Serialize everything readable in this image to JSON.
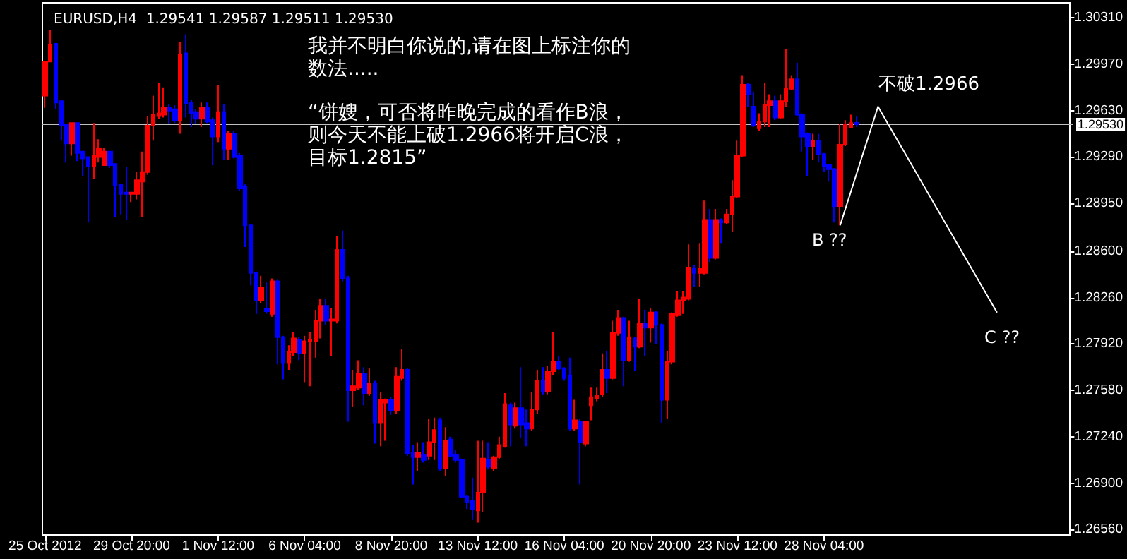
{
  "chart_data": {
    "type": "candlestick",
    "title": "EURUSD,H4  1.29541 1.29587 1.29511 1.29530",
    "annotations": [
      "我并不明白你说的,请在图上标注你的",
      "数法.....",
      "“饼嫂，可否将昨晚完成的看作B浪，",
      "则今天不能上破1.2966将开启C浪，",
      "目标1.2815”",
      "不破1.2966",
      "B ??",
      "C ??"
    ],
    "categories": [
      "25 Oct 2012",
      null,
      null,
      null,
      null,
      null,
      null,
      null,
      null,
      null,
      null,
      null,
      null,
      null,
      null,
      null,
      "29 Oct 20:00",
      null,
      null,
      null,
      null,
      null,
      null,
      null,
      null,
      null,
      null,
      null,
      null,
      null,
      null,
      null,
      "1 Nov 12:00",
      null,
      null,
      null,
      null,
      null,
      null,
      null,
      null,
      null,
      null,
      null,
      null,
      null,
      null,
      null,
      "6 Nov 04:00",
      null,
      null,
      null,
      null,
      null,
      null,
      null,
      null,
      null,
      null,
      null,
      null,
      null,
      null,
      null,
      "8 Nov 20:00",
      null,
      null,
      null,
      null,
      null,
      null,
      null,
      null,
      null,
      null,
      null,
      null,
      null,
      null,
      null,
      "13 Nov 12:00",
      null,
      null,
      null,
      null,
      null,
      null,
      null,
      null,
      null,
      null,
      null,
      null,
      null,
      null,
      null,
      "16 Nov 04:00",
      null,
      null,
      null,
      null,
      null,
      null,
      null,
      null,
      null,
      null,
      null,
      null,
      null,
      null,
      null,
      "20 Nov 20:00",
      null,
      null,
      null,
      null,
      null,
      null,
      null,
      null,
      null,
      null,
      null,
      null,
      null,
      null,
      null,
      "23 Nov 12:00",
      null,
      null,
      null,
      null,
      null,
      null,
      null,
      null,
      null,
      null,
      null,
      null,
      null,
      null,
      null,
      "28 Nov 04:00",
      null,
      null,
      null,
      null,
      null,
      null,
      null,
      null,
      null,
      null,
      null,
      null,
      null,
      null,
      null,
      null,
      null,
      null,
      null,
      null,
      null,
      null,
      null,
      null,
      null,
      null,
      null,
      null,
      null,
      null,
      null,
      null,
      null,
      null,
      null,
      null,
      null,
      null,
      null,
      null,
      null,
      null,
      null,
      null,
      null
    ],
    "ohlc": [
      [
        1.2974,
        1.2999,
        1.2965,
        1.2999
      ],
      [
        1.2999,
        1.3022,
        1.2999,
        1.3011
      ],
      [
        1.3012,
        1.3012,
        1.2964,
        1.2969
      ],
      [
        1.297,
        1.297,
        1.2941,
        1.2952
      ],
      [
        1.2953,
        1.2953,
        1.2925,
        1.2939
      ],
      [
        1.2939,
        1.2954,
        1.293,
        1.2954
      ],
      [
        1.2954,
        1.2954,
        1.2926,
        1.2932
      ],
      [
        1.2933,
        1.2933,
        1.2915,
        1.2928
      ],
      [
        1.2929,
        1.2929,
        1.2881,
        1.2922
      ],
      [
        1.2922,
        1.2954,
        1.2913,
        1.293
      ],
      [
        1.2929,
        1.2942,
        1.2925,
        1.2935
      ],
      [
        1.2923,
        1.2936,
        1.2923,
        1.2933
      ],
      [
        1.2933,
        1.2933,
        1.2921,
        1.2923
      ],
      [
        1.2924,
        1.2924,
        1.2885,
        1.2908
      ],
      [
        1.2909,
        1.2909,
        1.2887,
        1.2902
      ],
      [
        1.2903,
        1.2922,
        1.2883,
        1.2902
      ],
      [
        1.2902,
        1.2903,
        1.2896,
        1.2903
      ],
      [
        1.2902,
        1.2918,
        1.2898,
        1.2912
      ],
      [
        1.2911,
        1.2933,
        1.2885,
        1.2918
      ],
      [
        1.2918,
        1.2959,
        1.2916,
        1.2952
      ],
      [
        1.2952,
        1.2974,
        1.2941,
        1.296
      ],
      [
        1.2959,
        1.2983,
        1.2957,
        1.2961
      ],
      [
        1.296,
        1.298,
        1.2958,
        1.2965
      ],
      [
        1.2965,
        1.2968,
        1.2953,
        1.2963
      ],
      [
        1.2964,
        1.2967,
        1.2954,
        1.2956
      ],
      [
        1.2956,
        1.3013,
        1.2946,
        1.3004
      ],
      [
        1.3005,
        1.3019,
        1.2958,
        1.2968
      ],
      [
        1.2969,
        1.2971,
        1.2951,
        1.2961
      ],
      [
        1.2962,
        1.2964,
        1.2953,
        1.2957
      ],
      [
        1.2957,
        1.2969,
        1.2951,
        1.2965
      ],
      [
        1.2965,
        1.2969,
        1.2954,
        1.2955
      ],
      [
        1.2956,
        1.2958,
        1.2923,
        1.2944
      ],
      [
        1.2944,
        1.2982,
        1.294,
        1.2962
      ],
      [
        1.2962,
        1.2968,
        1.2927,
        1.2935
      ],
      [
        1.2935,
        1.2948,
        1.2927,
        1.2946
      ],
      [
        1.2946,
        1.2948,
        1.2928,
        1.2929
      ],
      [
        1.293,
        1.2932,
        1.2904,
        1.2906
      ],
      [
        1.2907,
        1.2909,
        1.2863,
        1.2879
      ],
      [
        1.2879,
        1.288,
        1.2835,
        1.2844
      ],
      [
        1.2844,
        1.2845,
        1.2814,
        1.2824
      ],
      [
        1.2824,
        1.2842,
        1.2822,
        1.2833
      ],
      [
        1.2818,
        1.2837,
        1.2814,
        1.2816
      ],
      [
        1.2814,
        1.284,
        1.2812,
        1.2838
      ],
      [
        1.2838,
        1.2839,
        1.2777,
        1.2797
      ],
      [
        1.2797,
        1.2798,
        1.2766,
        1.2778
      ],
      [
        1.2778,
        1.2791,
        1.2773,
        1.2786
      ],
      [
        1.2786,
        1.2801,
        1.2783,
        1.2796
      ],
      [
        1.2795,
        1.2797,
        1.278,
        1.2785
      ],
      [
        1.2785,
        1.2798,
        1.2764,
        1.2794
      ],
      [
        1.2794,
        1.2801,
        1.2761,
        1.2795
      ],
      [
        1.2794,
        1.2817,
        1.2782,
        1.2809
      ],
      [
        1.2809,
        1.2825,
        1.2796,
        1.282
      ],
      [
        1.282,
        1.2825,
        1.2806,
        1.2809
      ],
      [
        1.2809,
        1.2818,
        1.2783,
        1.281
      ],
      [
        1.2809,
        1.2871,
        1.2807,
        1.2861
      ],
      [
        1.2861,
        1.2875,
        1.2838,
        1.284
      ],
      [
        1.284,
        1.2842,
        1.2735,
        1.2758
      ],
      [
        1.2758,
        1.2773,
        1.2746,
        1.2761
      ],
      [
        1.276,
        1.278,
        1.2758,
        1.277
      ],
      [
        1.277,
        1.2775,
        1.2747,
        1.2756
      ],
      [
        1.2756,
        1.2774,
        1.2754,
        1.2763
      ],
      [
        1.2763,
        1.2765,
        1.2719,
        1.2734
      ],
      [
        1.2734,
        1.2757,
        1.2717,
        1.2751
      ],
      [
        1.2749,
        1.2752,
        1.2721,
        1.2751
      ],
      [
        1.2751,
        1.2753,
        1.274,
        1.2743
      ],
      [
        1.2743,
        1.2775,
        1.2741,
        1.2768
      ],
      [
        1.2767,
        1.2788,
        1.2765,
        1.2773
      ],
      [
        1.2773,
        1.2774,
        1.271,
        1.2712
      ],
      [
        1.2712,
        1.2718,
        1.2689,
        1.2709
      ],
      [
        1.2709,
        1.272,
        1.2699,
        1.2712
      ],
      [
        1.2711,
        1.272,
        1.2705,
        1.2707
      ],
      [
        1.271,
        1.2737,
        1.2707,
        1.272
      ],
      [
        1.272,
        1.2738,
        1.2707,
        1.2729
      ],
      [
        1.2736,
        1.2738,
        1.2699,
        1.2701
      ],
      [
        1.2701,
        1.2731,
        1.2695,
        1.2721
      ],
      [
        1.2722,
        1.2724,
        1.2709,
        1.271
      ],
      [
        1.2711,
        1.2714,
        1.2705,
        1.2707
      ],
      [
        1.2707,
        1.2708,
        1.2679,
        1.268
      ],
      [
        1.268,
        1.2681,
        1.2671,
        1.2676
      ],
      [
        1.2677,
        1.2694,
        1.2663,
        1.2671
      ],
      [
        1.267,
        1.2721,
        1.2661,
        1.2683
      ],
      [
        1.2683,
        1.2721,
        1.2669,
        1.2708
      ],
      [
        1.2707,
        1.272,
        1.27,
        1.2702
      ],
      [
        1.2701,
        1.271,
        1.2699,
        1.2709
      ],
      [
        1.2709,
        1.2724,
        1.2708,
        1.2718
      ],
      [
        1.2717,
        1.2756,
        1.2716,
        1.2748
      ],
      [
        1.2747,
        1.2749,
        1.2717,
        1.2733
      ],
      [
        1.2732,
        1.2749,
        1.273,
        1.2745
      ],
      [
        1.2745,
        1.2775,
        1.2723,
        1.2733
      ],
      [
        1.2734,
        1.2744,
        1.2717,
        1.273
      ],
      [
        1.273,
        1.2757,
        1.2728,
        1.2744
      ],
      [
        1.2744,
        1.2773,
        1.2741,
        1.2765
      ],
      [
        1.2765,
        1.2775,
        1.2755,
        1.2757
      ],
      [
        1.2757,
        1.2776,
        1.2755,
        1.2772
      ],
      [
        1.2772,
        1.2801,
        1.2769,
        1.2779
      ],
      [
        1.2779,
        1.2783,
        1.2773,
        1.2774
      ],
      [
        1.2774,
        1.2775,
        1.2765,
        1.2767
      ],
      [
        1.2769,
        1.2782,
        1.2728,
        1.273
      ],
      [
        1.273,
        1.2751,
        1.2728,
        1.2736
      ],
      [
        1.2735,
        1.2737,
        1.2689,
        1.272
      ],
      [
        1.2719,
        1.2735,
        1.2717,
        1.2735
      ],
      [
        1.2747,
        1.276,
        1.2736,
        1.2753
      ],
      [
        1.2752,
        1.276,
        1.275,
        1.2754
      ],
      [
        1.2755,
        1.2785,
        1.2753,
        1.2773
      ],
      [
        1.2773,
        1.2787,
        1.2756,
        1.2767
      ],
      [
        1.2767,
        1.2809,
        1.2766,
        1.28
      ],
      [
        1.28,
        1.2817,
        1.2798,
        1.2811
      ],
      [
        1.2811,
        1.2812,
        1.2761,
        1.278
      ],
      [
        1.278,
        1.2809,
        1.2779,
        1.2797
      ],
      [
        1.2796,
        1.2797,
        1.2772,
        1.279
      ],
      [
        1.279,
        1.2825,
        1.2789,
        1.2807
      ],
      [
        1.2807,
        1.2817,
        1.2783,
        1.2804
      ],
      [
        1.2804,
        1.2818,
        1.2793,
        1.2815
      ],
      [
        1.2815,
        1.2816,
        1.2792,
        1.2806
      ],
      [
        1.2806,
        1.2807,
        1.2734,
        1.2751
      ],
      [
        1.2751,
        1.2787,
        1.2737,
        1.2779
      ],
      [
        1.2779,
        1.2815,
        1.2777,
        1.2814
      ],
      [
        1.2813,
        1.2831,
        1.2812,
        1.2824
      ],
      [
        1.2824,
        1.2831,
        1.2814,
        1.2826
      ],
      [
        1.2825,
        1.2865,
        1.2824,
        1.2848
      ],
      [
        1.2847,
        1.285,
        1.2834,
        1.2844
      ],
      [
        1.2844,
        1.2866,
        1.2834,
        1.2847
      ],
      [
        1.2844,
        1.2897,
        1.2843,
        1.2883
      ],
      [
        1.2883,
        1.2891,
        1.2852,
        1.2855
      ],
      [
        1.2855,
        1.2891,
        1.2854,
        1.2883
      ],
      [
        1.2883,
        1.2884,
        1.2866,
        1.2881
      ],
      [
        1.2881,
        1.2891,
        1.288,
        1.2887
      ],
      [
        1.2887,
        1.2912,
        1.2874,
        1.29
      ],
      [
        1.29,
        1.2941,
        1.2899,
        1.293
      ],
      [
        1.293,
        1.2989,
        1.2929,
        1.2982
      ],
      [
        1.2982,
        1.2983,
        1.2966,
        1.2975
      ],
      [
        1.2966,
        1.2977,
        1.2951,
        1.2952
      ],
      [
        1.295,
        1.2961,
        1.2948,
        1.2955
      ],
      [
        1.2955,
        1.2983,
        1.2951,
        1.2967
      ],
      [
        1.2967,
        1.2975,
        1.2951,
        1.297
      ],
      [
        1.297,
        1.2974,
        1.2956,
        1.2958
      ],
      [
        1.2958,
        1.2975,
        1.2957,
        1.297
      ],
      [
        1.297,
        1.3008,
        1.2966,
        1.2979
      ],
      [
        1.2979,
        1.2989,
        1.2978,
        1.2986
      ],
      [
        1.2986,
        1.2998,
        1.2959,
        1.296
      ],
      [
        1.296,
        1.2961,
        1.2933,
        1.2944
      ],
      [
        1.2946,
        1.2947,
        1.2915,
        1.2937
      ],
      [
        1.2937,
        1.2946,
        1.2927,
        1.2941
      ],
      [
        1.2941,
        1.2946,
        1.2925,
        1.2931
      ],
      [
        1.2931,
        1.2932,
        1.2918,
        1.2922
      ],
      [
        1.2923,
        1.2924,
        1.2911,
        1.292
      ],
      [
        1.292,
        1.2921,
        1.2881,
        1.2893
      ],
      [
        1.2893,
        1.2953,
        1.2879,
        1.2938
      ],
      [
        1.2938,
        1.2956,
        1.2937,
        1.2953
      ],
      [
        1.2951,
        1.296,
        1.295,
        1.2954
      ],
      [
        1.29541,
        1.29587,
        1.29511,
        1.2953
      ],
      null,
      null,
      null,
      null,
      null,
      null,
      null,
      null,
      null,
      null,
      null,
      null,
      null,
      null,
      null,
      null,
      null,
      null,
      null,
      null,
      null,
      null,
      null,
      null,
      null,
      null,
      null,
      null,
      null,
      null,
      null,
      null,
      null,
      null,
      null,
      null,
      null,
      null,
      null
    ],
    "colors": [
      "#ff0000",
      "#ff0000",
      "#0000ff",
      "#0000ff",
      "#0000ff",
      "#ff0000",
      "#0000ff",
      "#0000ff",
      "#0000ff",
      "#ff0000",
      "#ff0000",
      "#ff0000",
      "#0000ff",
      "#0000ff",
      "#0000ff",
      "#0000ff",
      "#ff0000",
      "#ff0000",
      "#ff0000",
      "#ff0000",
      "#ff0000",
      "#ff0000",
      "#ff0000",
      "#0000ff",
      "#0000ff",
      "#ff0000",
      "#0000ff",
      "#0000ff",
      "#0000ff",
      "#ff0000",
      "#0000ff",
      "#0000ff",
      "#ff0000",
      "#0000ff",
      "#ff0000",
      "#0000ff",
      "#0000ff",
      "#0000ff",
      "#0000ff",
      "#0000ff",
      "#ff0000",
      "#0000ff",
      "#ff0000",
      "#0000ff",
      "#0000ff",
      "#ff0000",
      "#ff0000",
      "#0000ff",
      "#ff0000",
      "#ff0000",
      "#ff0000",
      "#ff0000",
      "#0000ff",
      "#ff0000",
      "#ff0000",
      "#0000ff",
      "#0000ff",
      "#ff0000",
      "#ff0000",
      "#0000ff",
      "#ff0000",
      "#0000ff",
      "#ff0000",
      "#ff0000",
      "#0000ff",
      "#ff0000",
      "#ff0000",
      "#0000ff",
      "#0000ff",
      "#ff0000",
      "#0000ff",
      "#ff0000",
      "#ff0000",
      "#0000ff",
      "#ff0000",
      "#0000ff",
      "#0000ff",
      "#0000ff",
      "#0000ff",
      "#0000ff",
      "#ff0000",
      "#ff0000",
      "#0000ff",
      "#ff0000",
      "#ff0000",
      "#ff0000",
      "#0000ff",
      "#ff0000",
      "#0000ff",
      "#0000ff",
      "#ff0000",
      "#ff0000",
      "#0000ff",
      "#ff0000",
      "#ff0000",
      "#0000ff",
      "#0000ff",
      "#0000ff",
      "#ff0000",
      "#0000ff",
      "#ff0000",
      "#ff0000",
      "#ff0000",
      "#ff0000",
      "#0000ff",
      "#ff0000",
      "#ff0000",
      "#0000ff",
      "#ff0000",
      "#0000ff",
      "#ff0000",
      "#0000ff",
      "#ff0000",
      "#0000ff",
      "#0000ff",
      "#ff0000",
      "#ff0000",
      "#ff0000",
      "#ff0000",
      "#ff0000",
      "#0000ff",
      "#ff0000",
      "#ff0000",
      "#0000ff",
      "#ff0000",
      "#0000ff",
      "#ff0000",
      "#ff0000",
      "#ff0000",
      "#ff0000",
      "#0000ff",
      "#0000ff",
      "#ff0000",
      "#ff0000",
      "#ff0000",
      "#0000ff",
      "#ff0000",
      "#ff0000",
      "#ff0000",
      "#0000ff",
      "#0000ff",
      "#0000ff",
      "#ff0000",
      "#0000ff",
      "#0000ff",
      "#0000ff",
      "#0000ff",
      "#ff0000",
      "#ff0000",
      "#ff0000",
      "#0000ff",
      null,
      null,
      null,
      null,
      null,
      null,
      null,
      null,
      null,
      null,
      null,
      null,
      null,
      null,
      null,
      null,
      null,
      null,
      null,
      null,
      null,
      null,
      null,
      null,
      null,
      null,
      null,
      null,
      null,
      null,
      null,
      null,
      null,
      null,
      null,
      null,
      null,
      null,
      null
    ],
    "series": [
      {
        "type": "line",
        "color": "#ffffff",
        "marker": "none",
        "values": [
          null,
          null,
          null,
          null,
          null,
          null,
          null,
          null,
          null,
          null,
          null,
          null,
          null,
          null,
          null,
          null,
          null,
          null,
          null,
          null,
          null,
          null,
          null,
          null,
          null,
          null,
          null,
          null,
          null,
          null,
          null,
          null,
          null,
          null,
          null,
          null,
          null,
          null,
          null,
          null,
          null,
          null,
          null,
          null,
          null,
          null,
          null,
          null,
          null,
          null,
          null,
          null,
          null,
          null,
          null,
          null,
          null,
          null,
          null,
          null,
          null,
          null,
          null,
          null,
          null,
          null,
          null,
          null,
          null,
          null,
          null,
          null,
          null,
          null,
          null,
          null,
          null,
          null,
          null,
          null,
          null,
          null,
          null,
          null,
          null,
          null,
          null,
          null,
          null,
          null,
          null,
          null,
          null,
          null,
          null,
          null,
          null,
          null,
          null,
          null,
          null,
          null,
          null,
          null,
          null,
          null,
          null,
          null,
          null,
          null,
          null,
          null,
          null,
          null,
          null,
          null,
          null,
          null,
          null,
          null,
          null,
          null,
          null,
          null,
          null,
          null,
          null,
          null,
          null,
          null,
          null,
          null,
          null,
          null,
          null,
          null,
          null,
          null,
          null,
          null,
          null,
          null,
          null,
          null,
          null,
          null,
          null,
          1.2879,
          null,
          null,
          null,
          null,
          null,
          null,
          1.2966,
          null,
          null,
          null,
          null,
          null,
          null,
          null,
          null,
          null,
          null,
          null,
          null,
          null,
          null,
          null,
          null,
          null,
          null,
          null,
          null,
          null,
          1.2815,
          null,
          null,
          null,
          null,
          null,
          null,
          null,
          null,
          null,
          null,
          null,
          null,
          null
        ]
      }
    ],
    "ylim": [
      1.2652,
      1.3042
    ],
    "yticks": [
      {
        "value": 1.2656,
        "label": "1.26560"
      },
      {
        "value": 1.269,
        "label": "1.26900"
      },
      {
        "value": 1.2724,
        "label": "1.27240"
      },
      {
        "value": 1.2758,
        "label": "1.27580"
      },
      {
        "value": 1.2792,
        "label": "1.27920"
      },
      {
        "value": 1.2826,
        "label": "1.28260"
      },
      {
        "value": 1.286,
        "label": "1.28600"
      },
      {
        "value": 1.2895,
        "label": "1.28950"
      },
      {
        "value": 1.2929,
        "label": "1.29290"
      },
      {
        "value": 1.2963,
        "label": "1.29630"
      },
      {
        "value": 1.2997,
        "label": "1.29970"
      },
      {
        "value": 1.3031,
        "label": "1.30310"
      }
    ],
    "ref_lines": [
      {
        "axis": "y",
        "value": 1.2953,
        "label": "1.29530",
        "color": "#c0c0c0"
      }
    ],
    "grid": false
  }
}
